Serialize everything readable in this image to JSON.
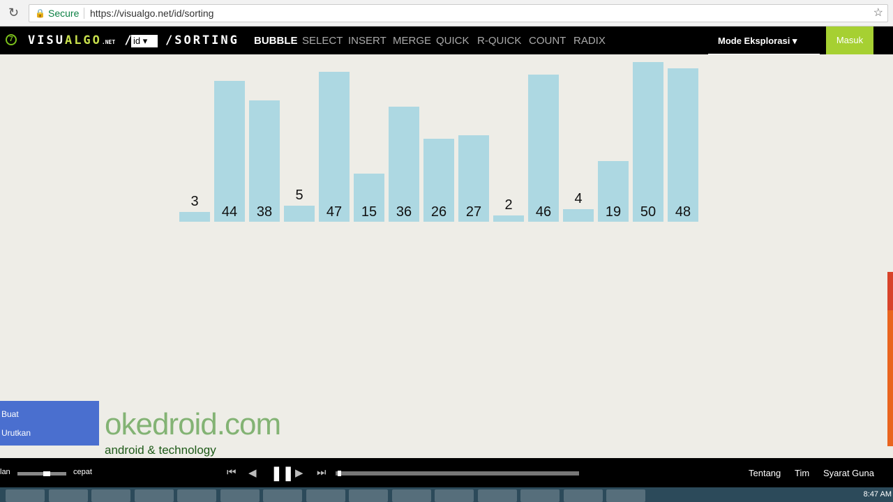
{
  "browser": {
    "secure": "Secure",
    "url": "https://visualgo.net/id/sorting"
  },
  "nav": {
    "logo": "VISUALGO",
    "logo_net": ".NET",
    "lang": "id",
    "page": "/SORTING",
    "algorithms": [
      {
        "label": "BUBBLE",
        "active": true
      },
      {
        "label": "SELECT"
      },
      {
        "label": "INSERT"
      },
      {
        "label": "MERGE"
      },
      {
        "label": "QUICK"
      },
      {
        "label": "R-QUICK"
      },
      {
        "label": "COUNT"
      },
      {
        "label": "RADIX"
      }
    ],
    "mode": "Mode Eksplorasi",
    "login": "Masuk"
  },
  "array": [
    3,
    44,
    38,
    5,
    47,
    15,
    36,
    26,
    27,
    2,
    46,
    4,
    19,
    50,
    48
  ],
  "bar_color": "#add8e2",
  "menu": {
    "create": "Buat",
    "sort": "Urutkan"
  },
  "watermark": {
    "main": "okedroid.com",
    "tag": "android & technology"
  },
  "controls": {
    "slow": "lan",
    "fast": "cepat",
    "speed": 0.6,
    "progress": 0.01
  },
  "footer": {
    "about": "Tentang",
    "team": "Tim",
    "terms": "Syarat Guna"
  },
  "taskbar": {
    "time": "8:47 AM"
  }
}
